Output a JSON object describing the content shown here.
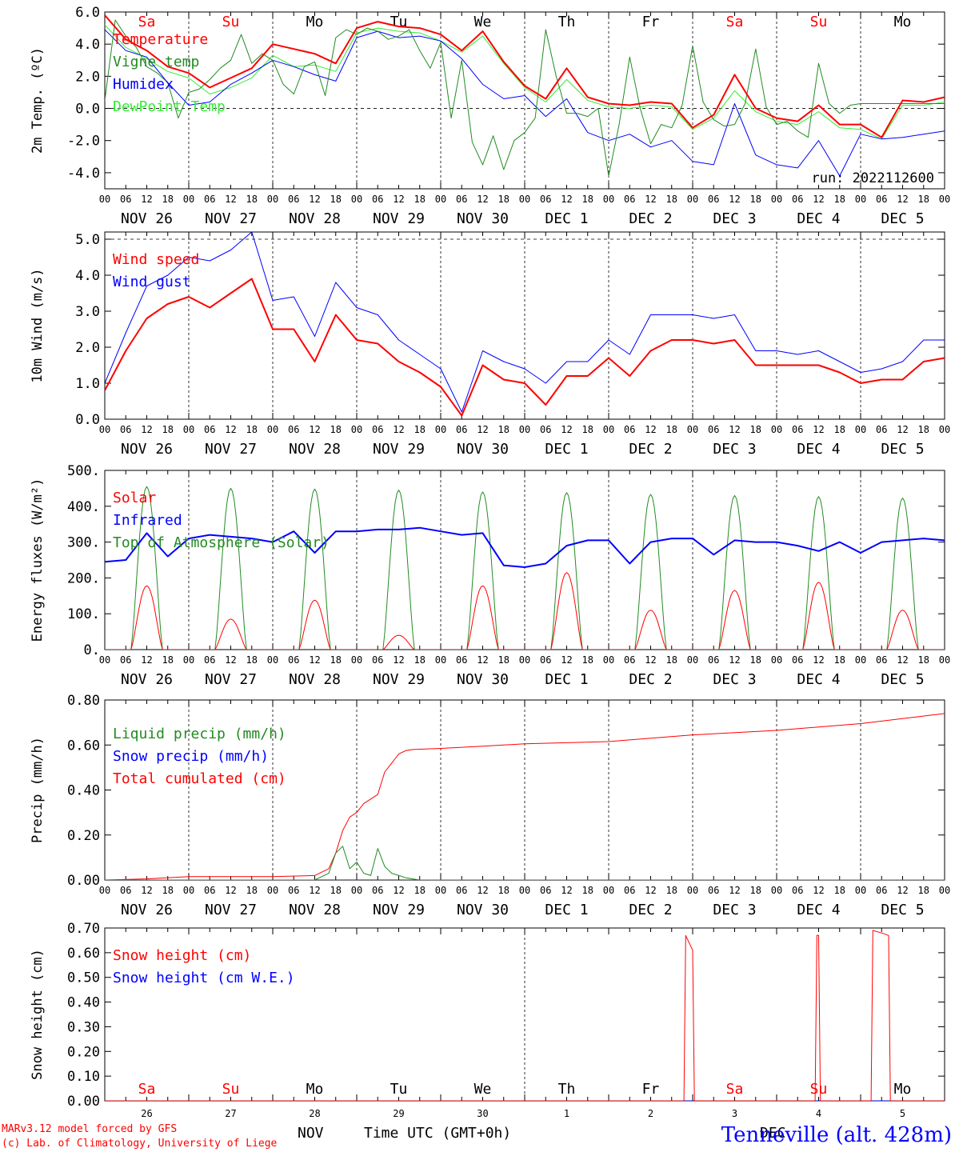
{
  "run_label": "run: 2022112600",
  "footer": {
    "credit_line1": "MARv3.12 model forced by GFS",
    "credit_line2": "(c) Lab. of Climatology, University of Liege",
    "month_label": "NOV",
    "time_label": "Time UTC (GMT+0h)",
    "station": "Tenneville (alt. 428m)",
    "month_label2": "DEC"
  },
  "hour_ticks": [
    "00",
    "06",
    "12",
    "18"
  ],
  "end_tick": "00",
  "date_labels": [
    "NOV 26",
    "NOV 27",
    "NOV 28",
    "NOV 29",
    "NOV 30",
    "DEC  1",
    "DEC  2",
    "DEC  3",
    "DEC  4",
    "DEC  5"
  ],
  "weekdays": [
    {
      "label": "Sa",
      "color": "#ff0000"
    },
    {
      "label": "Su",
      "color": "#ff0000"
    },
    {
      "label": "Mo",
      "color": "#000000"
    },
    {
      "label": "Tu",
      "color": "#000000"
    },
    {
      "label": "We",
      "color": "#000000"
    },
    {
      "label": "Th",
      "color": "#000000"
    },
    {
      "label": "Fr",
      "color": "#000000"
    },
    {
      "label": "Sa",
      "color": "#ff0000"
    },
    {
      "label": "Su",
      "color": "#ff0000"
    },
    {
      "label": "Mo",
      "color": "#000000"
    }
  ],
  "day_numbers": [
    "26",
    "27",
    "28",
    "29",
    "30",
    "1",
    "2",
    "3",
    "4",
    "5"
  ],
  "chart_data": [
    {
      "type": "line",
      "ylabel": "2m Temp. (ºC)",
      "ylim": [
        -5.0,
        6.0
      ],
      "yticks": [
        "6.0",
        "4.0",
        "2.0",
        "0.0",
        "-2.0",
        "-4.0"
      ],
      "ytick_values": [
        6,
        4,
        2,
        0,
        -2,
        -4
      ],
      "dashed_y": [
        0.0
      ],
      "show_weekdays": true,
      "x_unit": "hours since NOV 26 00 UTC",
      "series": [
        {
          "name": "Temperature",
          "color": "#ff0000",
          "width": 2,
          "x": [
            0,
            6,
            12,
            18,
            24,
            30,
            36,
            42,
            48,
            54,
            60,
            66,
            72,
            78,
            84,
            90,
            96,
            102,
            108,
            114,
            120,
            126,
            132,
            138,
            144,
            150,
            156,
            162,
            168,
            174,
            180,
            186,
            192,
            198,
            204,
            210,
            216,
            222,
            228,
            234,
            240
          ],
          "y": [
            5.8,
            4.3,
            3.6,
            2.6,
            2.2,
            1.3,
            1.9,
            2.5,
            4.0,
            3.7,
            3.4,
            2.8,
            5.0,
            5.4,
            5.1,
            5.0,
            4.6,
            3.6,
            4.8,
            2.9,
            1.4,
            0.6,
            2.5,
            0.7,
            0.3,
            0.2,
            0.4,
            0.3,
            -1.2,
            -0.4,
            2.1,
            0.0,
            -0.6,
            -0.8,
            0.2,
            -1.0,
            -1.0,
            -1.8,
            0.5,
            0.4,
            0.7
          ]
        },
        {
          "name": "Vigne temp",
          "color": "#228b22",
          "width": 1,
          "x": [
            0,
            3,
            6,
            9,
            12,
            15,
            18,
            21,
            24,
            27,
            30,
            33,
            36,
            39,
            42,
            45,
            48,
            51,
            54,
            57,
            60,
            63,
            66,
            69,
            72,
            75,
            78,
            81,
            84,
            87,
            90,
            93,
            96,
            99,
            102,
            105,
            108,
            111,
            114,
            117,
            120,
            123,
            126,
            129,
            132,
            135,
            138,
            141,
            144,
            147,
            150,
            153,
            156,
            159,
            162,
            165,
            168,
            171,
            174,
            177,
            180,
            183,
            186,
            189,
            192,
            195,
            198,
            201,
            204,
            207,
            210,
            213,
            216,
            219,
            222,
            225,
            228,
            231,
            234,
            237,
            240
          ],
          "y": [
            0.5,
            5.5,
            4.5,
            3.8,
            2.6,
            2.2,
            1.6,
            -0.6,
            1.0,
            1.2,
            1.8,
            2.5,
            3.0,
            4.6,
            2.8,
            3.4,
            3.0,
            1.5,
            0.9,
            2.6,
            2.9,
            0.8,
            4.4,
            4.9,
            4.6,
            5.0,
            4.8,
            4.3,
            4.5,
            4.9,
            3.6,
            2.5,
            4.1,
            -0.6,
            3.0,
            -2.1,
            -3.5,
            -1.7,
            -3.8,
            -2.0,
            -1.5,
            -0.6,
            4.9,
            2.0,
            -0.3,
            -0.3,
            -0.5,
            0.0,
            -4.2,
            -1.0,
            3.2,
            0.0,
            -2.2,
            -1.0,
            -1.2,
            0.2,
            3.9,
            0.4,
            -0.7,
            -1.1,
            -1.0,
            0.3,
            3.7,
            0.1,
            -1.0,
            -0.8,
            -1.4,
            -1.8,
            2.8,
            0.3,
            -0.3,
            0.2,
            0.3,
            0.3,
            0.3,
            0.3,
            0.3,
            0.3,
            0.3,
            0.3,
            0.3
          ]
        },
        {
          "name": "Humidex",
          "color": "#0000ff",
          "width": 1,
          "x": [
            0,
            6,
            12,
            18,
            24,
            30,
            36,
            42,
            48,
            54,
            60,
            66,
            72,
            78,
            84,
            90,
            96,
            102,
            108,
            114,
            120,
            126,
            132,
            138,
            144,
            150,
            156,
            162,
            168,
            174,
            180,
            186,
            192,
            198,
            204,
            210,
            216,
            222,
            228,
            234,
            240
          ],
          "y": [
            4.9,
            3.6,
            3.2,
            1.6,
            0.2,
            0.4,
            1.5,
            2.2,
            3.0,
            2.6,
            2.1,
            1.7,
            4.4,
            4.8,
            4.4,
            4.5,
            4.2,
            3.1,
            1.5,
            0.6,
            0.8,
            -0.5,
            0.6,
            -1.5,
            -2.0,
            -1.6,
            -2.4,
            -2.0,
            -3.3,
            -3.5,
            0.3,
            -2.9,
            -3.5,
            -3.7,
            -2.0,
            -4.2,
            -1.6,
            -1.9,
            -1.8,
            -1.6,
            -1.4
          ]
        },
        {
          "name": "DewPoint Temp",
          "color": "#33ee33",
          "width": 1,
          "x": [
            0,
            6,
            12,
            18,
            24,
            30,
            36,
            42,
            48,
            54,
            60,
            66,
            72,
            78,
            84,
            90,
            96,
            102,
            108,
            114,
            120,
            126,
            132,
            138,
            144,
            150,
            156,
            162,
            168,
            174,
            180,
            186,
            192,
            198,
            204,
            210,
            216,
            222,
            228,
            234,
            240
          ],
          "y": [
            5.2,
            3.8,
            3.1,
            2.3,
            1.9,
            0.9,
            1.3,
            1.9,
            3.3,
            2.6,
            2.7,
            2.3,
            4.7,
            5.0,
            4.8,
            4.7,
            4.2,
            3.5,
            4.5,
            2.8,
            1.3,
            0.4,
            1.8,
            0.5,
            0.1,
            0.0,
            0.2,
            0.1,
            -1.3,
            -0.6,
            1.1,
            -0.2,
            -0.8,
            -1.0,
            -0.2,
            -1.2,
            -1.3,
            -1.9,
            0.2,
            0.2,
            0.4
          ]
        }
      ]
    },
    {
      "type": "line",
      "ylabel": "10m Wind (m/s)",
      "ylim": [
        0.0,
        5.2
      ],
      "yticks": [
        "5.0",
        "4.0",
        "3.0",
        "2.0",
        "1.0",
        "0.0"
      ],
      "ytick_values": [
        5,
        4,
        3,
        2,
        1,
        0
      ],
      "dashed_y": [
        5.0
      ],
      "show_weekdays": false,
      "x_unit": "hours since NOV 26 00 UTC",
      "series": [
        {
          "name": "Wind speed",
          "color": "#ff0000",
          "width": 2,
          "x": [
            0,
            6,
            12,
            18,
            24,
            30,
            36,
            42,
            48,
            54,
            60,
            66,
            72,
            78,
            84,
            90,
            96,
            102,
            108,
            114,
            120,
            126,
            132,
            138,
            144,
            150,
            156,
            162,
            168,
            174,
            180,
            186,
            192,
            198,
            204,
            210,
            216,
            222,
            228,
            234,
            240
          ],
          "y": [
            0.8,
            1.9,
            2.8,
            3.2,
            3.4,
            3.1,
            3.5,
            3.9,
            2.5,
            2.5,
            1.6,
            2.9,
            2.2,
            2.1,
            1.6,
            1.3,
            0.9,
            0.1,
            1.5,
            1.1,
            1.0,
            0.4,
            1.2,
            1.2,
            1.7,
            1.2,
            1.9,
            2.2,
            2.2,
            2.1,
            2.2,
            1.5,
            1.5,
            1.5,
            1.5,
            1.3,
            1.0,
            1.1,
            1.1,
            1.6,
            1.7
          ]
        },
        {
          "name": "Wind gust",
          "color": "#0000ff",
          "width": 1,
          "x": [
            0,
            6,
            12,
            18,
            24,
            30,
            36,
            42,
            48,
            54,
            60,
            66,
            72,
            78,
            84,
            90,
            96,
            102,
            108,
            114,
            120,
            126,
            132,
            138,
            144,
            150,
            156,
            162,
            168,
            174,
            180,
            186,
            192,
            198,
            204,
            210,
            216,
            222,
            228,
            234,
            240
          ],
          "y": [
            1.0,
            2.4,
            3.7,
            4.0,
            4.5,
            4.4,
            4.7,
            5.2,
            3.3,
            3.4,
            2.3,
            3.8,
            3.1,
            2.9,
            2.2,
            1.8,
            1.4,
            0.2,
            1.9,
            1.6,
            1.4,
            1.0,
            1.6,
            1.6,
            2.2,
            1.8,
            2.9,
            2.9,
            2.9,
            2.8,
            2.9,
            1.9,
            1.9,
            1.8,
            1.9,
            1.6,
            1.3,
            1.4,
            1.6,
            2.2,
            2.2
          ]
        }
      ]
    },
    {
      "type": "line",
      "ylabel": "Energy fluxes (W/m²)",
      "ylim": [
        0,
        500
      ],
      "yticks": [
        "500.",
        "400.",
        "300.",
        "200.",
        "100.",
        "0."
      ],
      "ytick_values": [
        500,
        400,
        300,
        200,
        100,
        0
      ],
      "dashed_y": [],
      "show_weekdays": false,
      "x_unit": "hours since NOV 26 00 UTC",
      "series": [
        {
          "name": "Solar",
          "color": "#ff0000",
          "width": 1,
          "type": "daily",
          "day_peaks": [
            178,
            85,
            138,
            40,
            178,
            215,
            110,
            165,
            188,
            110
          ]
        },
        {
          "name": "Infrared",
          "color": "#0000ff",
          "width": 2,
          "x": [
            0,
            6,
            12,
            18,
            24,
            30,
            36,
            42,
            48,
            54,
            60,
            66,
            72,
            78,
            84,
            90,
            96,
            102,
            108,
            114,
            120,
            126,
            132,
            138,
            144,
            150,
            156,
            162,
            168,
            174,
            180,
            186,
            192,
            198,
            204,
            210,
            216,
            222,
            228,
            234,
            240
          ],
          "y": [
            245,
            250,
            325,
            260,
            310,
            320,
            315,
            310,
            300,
            330,
            270,
            330,
            330,
            335,
            335,
            340,
            330,
            320,
            325,
            235,
            230,
            240,
            290,
            305,
            305,
            240,
            300,
            310,
            310,
            265,
            305,
            300,
            300,
            290,
            275,
            300,
            270,
            300,
            305,
            310,
            305
          ]
        },
        {
          "name": "Top of Atmosphere (Solar)",
          "color": "#228b22",
          "width": 1,
          "type": "daily",
          "day_peaks": [
            455,
            450,
            448,
            445,
            440,
            438,
            433,
            430,
            427,
            423
          ]
        }
      ]
    },
    {
      "type": "line",
      "ylabel": "Precip (mm/h)",
      "ylim": [
        0.0,
        0.8
      ],
      "yticks": [
        "0.80",
        "0.60",
        "0.40",
        "0.20",
        "0.00"
      ],
      "ytick_values": [
        0.8,
        0.6,
        0.4,
        0.2,
        0.0
      ],
      "dashed_y": [],
      "show_weekdays": false,
      "x_unit": "hours since NOV 26 00 UTC",
      "series": [
        {
          "name": "Liquid precip (mm/h)",
          "color": "#228b22",
          "width": 1,
          "x": [
            0,
            60,
            64,
            66,
            68,
            70,
            72,
            74,
            76,
            78,
            80,
            82,
            84,
            86,
            88,
            90,
            120,
            240
          ],
          "y": [
            0,
            0,
            0.03,
            0.12,
            0.15,
            0.05,
            0.08,
            0.03,
            0.02,
            0.14,
            0.06,
            0.03,
            0.02,
            0.01,
            0.005,
            0.0,
            0.0,
            0.0
          ]
        },
        {
          "name": "Snow precip (mm/h)",
          "color": "#0000ff",
          "width": 1,
          "x": [
            0,
            240
          ],
          "y": [
            0,
            0
          ]
        },
        {
          "name": "Total cumulated (cm)",
          "color": "#ff0000",
          "width": 1,
          "x": [
            0,
            12,
            24,
            48,
            60,
            64,
            66,
            68,
            70,
            72,
            74,
            76,
            78,
            80,
            82,
            84,
            86,
            88,
            96,
            108,
            120,
            144,
            168,
            192,
            216,
            240
          ],
          "y": [
            0.0,
            0.005,
            0.015,
            0.015,
            0.02,
            0.05,
            0.12,
            0.22,
            0.28,
            0.3,
            0.34,
            0.36,
            0.38,
            0.48,
            0.52,
            0.56,
            0.575,
            0.58,
            0.585,
            0.595,
            0.605,
            0.615,
            0.645,
            0.665,
            0.695,
            0.74
          ]
        }
      ]
    },
    {
      "type": "line",
      "ylabel": "Snow height (cm)",
      "ylim": [
        0.0,
        0.7
      ],
      "yticks": [
        "0.70",
        "0.60",
        "0.50",
        "0.40",
        "0.30",
        "0.20",
        "0.10",
        "0.00"
      ],
      "ytick_values": [
        0.7,
        0.6,
        0.5,
        0.4,
        0.3,
        0.2,
        0.1,
        0.0
      ],
      "dashed_y": [],
      "show_weekdays": true,
      "x_unit": "hours since NOV 26 00 UTC",
      "series": [
        {
          "name": "Snow height (cm)",
          "color": "#ff0000",
          "width": 1,
          "x": [
            0,
            165.5,
            166,
            168,
            168.5,
            169,
            203,
            203.5,
            204,
            204.5,
            219,
            219.5,
            222,
            224,
            224.5,
            225,
            240
          ],
          "y": [
            0,
            0,
            0.67,
            0.61,
            0,
            0,
            0,
            0.67,
            0.67,
            0,
            0,
            0.69,
            0.68,
            0.67,
            0,
            0,
            0
          ]
        },
        {
          "name": "Snow height (cm W.E.)",
          "color": "#0000ff",
          "width": 1,
          "x": [
            0,
            240
          ],
          "y": [
            0,
            0
          ]
        }
      ]
    }
  ]
}
